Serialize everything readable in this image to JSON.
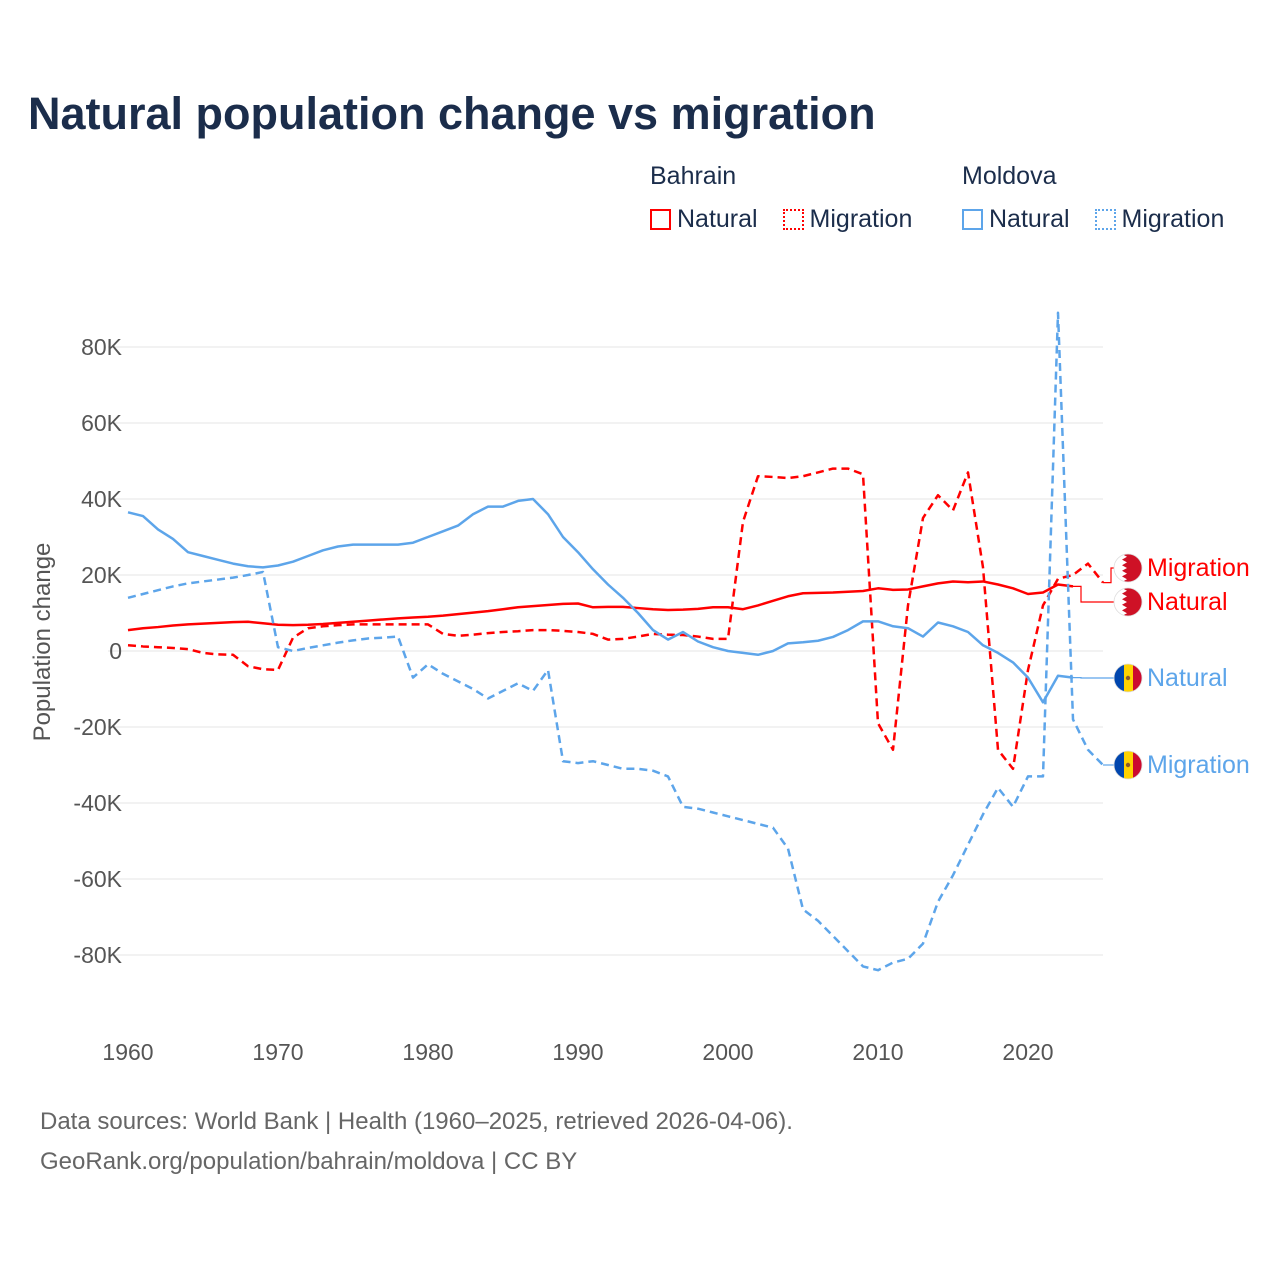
{
  "chart_data": {
    "type": "line",
    "title": "Natural population change vs migration",
    "xlabel": "",
    "ylabel": "Population change",
    "xlim": [
      1960,
      2025
    ],
    "ylim": [
      -90000,
      90000
    ],
    "x_ticks": [
      1960,
      1970,
      1980,
      1990,
      2000,
      2010,
      2020
    ],
    "x_tick_labels": [
      "1960",
      "1970",
      "1980",
      "1990",
      "2000",
      "2010",
      "2020"
    ],
    "y_ticks": [
      80000,
      60000,
      40000,
      20000,
      0,
      -20000,
      -40000,
      -60000,
      -80000
    ],
    "y_tick_labels": [
      "80K",
      "60K",
      "40K",
      "20K",
      "0",
      "-20K",
      "-40K",
      "-60K",
      "-80K"
    ],
    "grid": true,
    "legend_placement": "top-right",
    "legend_groups": [
      {
        "name": "Bahrain",
        "items": [
          "Natural",
          "Migration"
        ]
      },
      {
        "name": "Moldova",
        "items": [
          "Natural",
          "Migration"
        ]
      }
    ],
    "series": [
      {
        "name": "Bahrain Natural",
        "country": "Bahrain",
        "kind": "Natural",
        "color": "#ff0000",
        "dash": false,
        "start_year": 1960,
        "values": [
          5500,
          6000,
          6300,
          6700,
          7000,
          7200,
          7400,
          7600,
          7700,
          7300,
          6900,
          6800,
          6900,
          7100,
          7400,
          7700,
          8000,
          8300,
          8600,
          8800,
          9000,
          9300,
          9700,
          10100,
          10500,
          11000,
          11500,
          11800,
          12100,
          12400,
          12500,
          11500,
          11600,
          11600,
          11300,
          11000,
          10800,
          10900,
          11100,
          11500,
          11500,
          11000,
          12000,
          13200,
          14400,
          15200,
          15300,
          15400,
          15600,
          15800,
          16500,
          16100,
          16200,
          17000,
          17800,
          18300,
          18100,
          18300,
          17500,
          16500,
          15000,
          15400,
          17500,
          17000
        ]
      },
      {
        "name": "Bahrain Migration",
        "country": "Bahrain",
        "kind": "Migration",
        "color": "#ff0000",
        "dash": true,
        "start_year": 1960,
        "values": [
          1500,
          1200,
          1000,
          800,
          500,
          -500,
          -900,
          -1000,
          -4000,
          -4800,
          -5000,
          3500,
          6000,
          6500,
          6800,
          7000,
          7000,
          7000,
          7000,
          7000,
          7000,
          4500,
          4000,
          4300,
          4700,
          5000,
          5200,
          5500,
          5500,
          5300,
          5000,
          4500,
          3000,
          3200,
          3800,
          4500,
          4300,
          4200,
          3800,
          3200,
          3200,
          34000,
          46000,
          45800,
          45500,
          46000,
          47000,
          48000,
          48000,
          46500,
          -19000,
          -26000,
          12000,
          35000,
          41000,
          37000,
          47000,
          22000,
          -26000,
          -31000,
          -5000,
          12000,
          19000,
          20000,
          23000,
          18000
        ]
      },
      {
        "name": "Moldova Natural",
        "country": "Moldova",
        "kind": "Natural",
        "color": "#5da5ea",
        "dash": false,
        "start_year": 1960,
        "values": [
          36500,
          35500,
          32000,
          29500,
          26000,
          25000,
          24000,
          23000,
          22300,
          22000,
          22500,
          23500,
          25000,
          26500,
          27500,
          28000,
          28000,
          28000,
          28000,
          28500,
          30000,
          31500,
          33000,
          36000,
          38000,
          38000,
          39500,
          40000,
          36000,
          30000,
          26000,
          21500,
          17500,
          14000,
          10000,
          5500,
          3000,
          5000,
          2500,
          1000,
          0,
          -500,
          -1000,
          0,
          2000,
          2300,
          2700,
          3700,
          5500,
          7800,
          7800,
          6500,
          6000,
          3800,
          7500,
          6500,
          5000,
          1500,
          -500,
          -3000,
          -7000,
          -13500,
          -6500,
          -7000
        ]
      },
      {
        "name": "Moldova Migration",
        "country": "Moldova",
        "kind": "Migration",
        "color": "#5da5ea",
        "dash": true,
        "start_year": 1960,
        "values": [
          14000,
          15000,
          16000,
          17000,
          17800,
          18300,
          18800,
          19300,
          20000,
          20800,
          1000,
          0,
          800,
          1500,
          2200,
          2800,
          3300,
          3500,
          3800,
          -7000,
          -3500,
          -6000,
          -8000,
          -10000,
          -12500,
          -10500,
          -8500,
          -10500,
          -5000,
          -29000,
          -29500,
          -29000,
          -30000,
          -31000,
          -31000,
          -31500,
          -33000,
          -41000,
          -41500,
          -42500,
          -43500,
          -44500,
          -45500,
          -46500,
          -52000,
          -68000,
          -71000,
          -75000,
          -79000,
          -83000,
          -84000,
          -82000,
          -81000,
          -77000,
          -66000,
          -59000,
          -51000,
          -43000,
          -36000,
          -41000,
          -33000,
          -33000,
          89000,
          -18000,
          -26000,
          -30000
        ]
      }
    ],
    "end_labels": [
      {
        "text": "Migration",
        "series": 1,
        "flag": "bahrain"
      },
      {
        "text": "Natural",
        "series": 0,
        "flag": "bahrain"
      },
      {
        "text": "Natural",
        "series": 2,
        "flag": "moldova"
      },
      {
        "text": "Migration",
        "series": 3,
        "flag": "moldova"
      }
    ]
  },
  "legend": {
    "bahrain": {
      "name": "Bahrain",
      "natural": "Natural",
      "migration": "Migration"
    },
    "moldova": {
      "name": "Moldova",
      "natural": "Natural",
      "migration": "Migration"
    }
  },
  "footer": {
    "line1": "Data sources: World Bank | Health (1960–2025, retrieved 2026-04-06).",
    "line2": "GeoRank.org/population/bahrain/moldova | CC BY"
  },
  "colors": {
    "bahrain": "#ff0000",
    "moldova": "#5da5ea",
    "title": "#1b2d4b"
  }
}
